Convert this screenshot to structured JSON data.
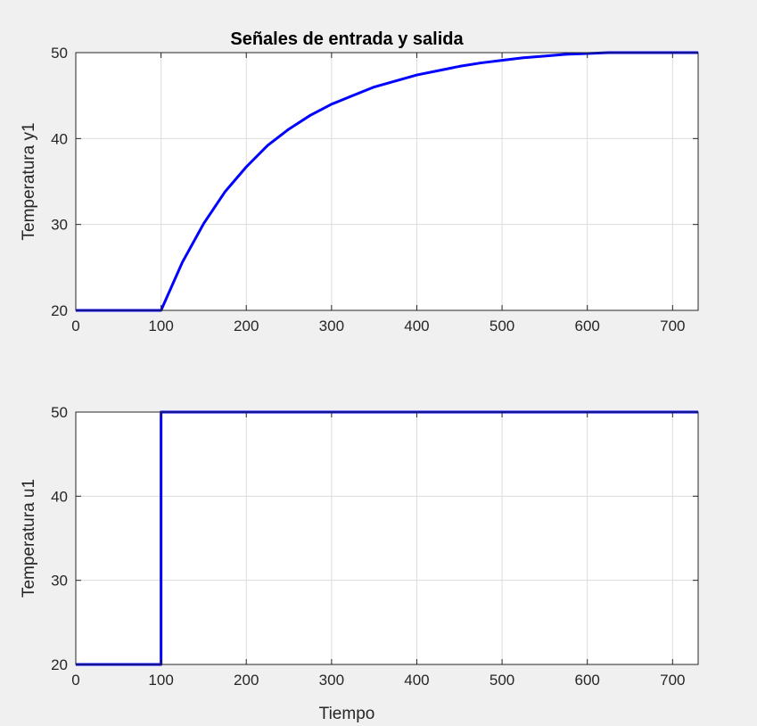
{
  "chart_data": [
    {
      "type": "line",
      "title": "Señales de entrada y salida",
      "xlabel": "",
      "ylabel": "Temperatura y1",
      "xlim": [
        0,
        730
      ],
      "ylim": [
        20,
        50
      ],
      "xticks": [
        "0",
        "100",
        "200",
        "300",
        "400",
        "500",
        "600",
        "700"
      ],
      "yticks": [
        "20",
        "30",
        "40",
        "50"
      ],
      "grid": true,
      "series_color": "#0000ff",
      "series": [
        {
          "x": [
            0,
            100,
            125,
            150,
            175,
            200,
            225,
            250,
            275,
            300,
            325,
            350,
            375,
            400,
            425,
            450,
            475,
            500,
            525,
            550,
            575,
            600,
            625,
            650,
            675,
            700,
            730
          ],
          "y": [
            20,
            20,
            25.6,
            30.1,
            33.8,
            36.7,
            39.2,
            41.1,
            42.7,
            44.0,
            45.0,
            46.0,
            46.7,
            47.4,
            47.9,
            48.4,
            48.8,
            49.1,
            49.4,
            49.6,
            49.8,
            49.9,
            50.0,
            50.1,
            50.1,
            50.2,
            50.2
          ]
        }
      ]
    },
    {
      "type": "line",
      "title": "",
      "xlabel": "Tiempo",
      "ylabel": "Temperatura u1",
      "xlim": [
        0,
        730
      ],
      "ylim": [
        20,
        50
      ],
      "xticks": [
        "0",
        "100",
        "200",
        "300",
        "400",
        "500",
        "600",
        "700"
      ],
      "yticks": [
        "20",
        "30",
        "40",
        "50"
      ],
      "grid": true,
      "series_color": "#0000ff",
      "series": [
        {
          "x": [
            0,
            100,
            100,
            730
          ],
          "y": [
            20,
            20,
            50,
            50
          ]
        }
      ]
    }
  ]
}
